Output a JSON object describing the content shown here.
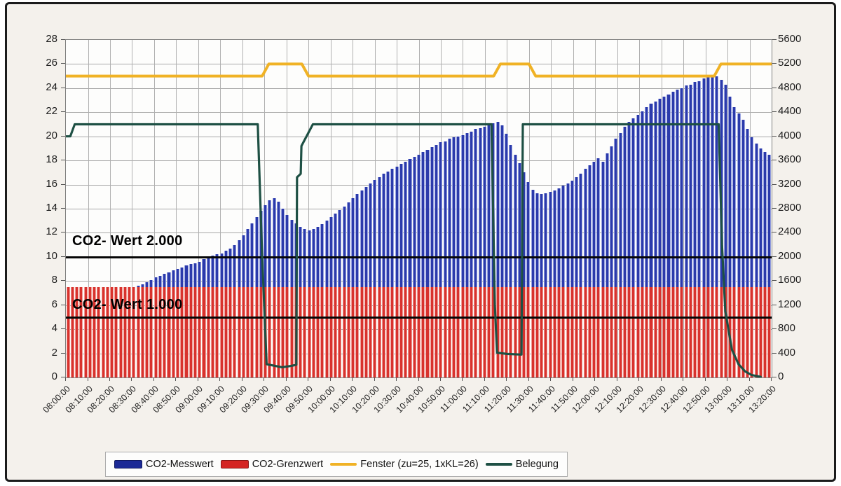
{
  "figure": {
    "background_color": "#f4f1ec",
    "frame_color": "#1b1b1b",
    "plot_background": "#fdfdfc"
  },
  "chart_data": {
    "type": "bar",
    "title": "",
    "xlabel": "",
    "ylabel_left": "",
    "ylabel_right": "",
    "grid": true,
    "left_axis": {
      "min": 0,
      "max": 28,
      "step": 2,
      "ticks": [
        "28",
        "26",
        "24",
        "22",
        "20",
        "18",
        "16",
        "14",
        "12",
        "10",
        "8",
        "6",
        "4",
        "2",
        "0"
      ]
    },
    "right_axis": {
      "min": 0,
      "max": 5600,
      "step": 400,
      "ticks": [
        "5600",
        "5200",
        "4800",
        "4400",
        "4000",
        "3600",
        "3200",
        "2800",
        "2400",
        "2000",
        "1600",
        "1200",
        "800",
        "400",
        "0"
      ]
    },
    "x_labels": [
      "08:00:00",
      "08:10:00",
      "08:20:00",
      "08:30:00",
      "08:40:00",
      "08:50:00",
      "09:00:00",
      "09:10:00",
      "09:20:00",
      "09:30:00",
      "09:40:00",
      "09:50:00",
      "10:00:00",
      "10:10:00",
      "10:20:00",
      "10:30:00",
      "10:40:00",
      "10:50:00",
      "11:00:00",
      "11:10:00",
      "11:20:00",
      "11:30:00",
      "11:40:00",
      "11:50:00",
      "12:00:00",
      "12:10:00",
      "12:20:00",
      "12:30:00",
      "12:40:00",
      "12:50:00",
      "13:00:00",
      "13:10:00",
      "13:20:00"
    ],
    "x_label_interval_minutes": 10,
    "time_span_minutes": 320,
    "bar_interval_minutes": 2,
    "scale_note": "right axis ppm = left axis units x 200",
    "series": [
      {
        "name": "CO2-Messwert",
        "type": "bar",
        "color": "#2b3aab",
        "edge_color": "#99a3e0",
        "values_left_axis_units": [
          6.8,
          6.8,
          6.9,
          6.9,
          7.0,
          7.0,
          7.1,
          7.1,
          7.2,
          7.2,
          7.3,
          7.3,
          7.4,
          7.4,
          7.5,
          7.5,
          7.6,
          7.7,
          7.9,
          8.1,
          8.3,
          8.4,
          8.6,
          8.7,
          8.9,
          9.0,
          9.1,
          9.3,
          9.4,
          9.5,
          9.6,
          9.8,
          9.9,
          10.1,
          10.2,
          10.3,
          10.5,
          10.7,
          11.0,
          11.4,
          11.8,
          12.3,
          12.8,
          13.3,
          13.8,
          14.3,
          14.7,
          14.9,
          14.6,
          14.0,
          13.5,
          13.1,
          12.8,
          12.5,
          12.3,
          12.2,
          12.3,
          12.5,
          12.7,
          13.0,
          13.3,
          13.6,
          13.9,
          14.2,
          14.5,
          14.9,
          15.2,
          15.5,
          15.8,
          16.1,
          16.4,
          16.6,
          16.9,
          17.1,
          17.3,
          17.5,
          17.7,
          17.9,
          18.1,
          18.3,
          18.5,
          18.7,
          18.9,
          19.1,
          19.3,
          19.5,
          19.6,
          19.8,
          19.9,
          20.0,
          20.1,
          20.3,
          20.4,
          20.6,
          20.7,
          20.8,
          21.0,
          21.1,
          21.2,
          20.9,
          20.2,
          19.3,
          18.5,
          17.8,
          17.0,
          16.2,
          15.6,
          15.3,
          15.2,
          15.3,
          15.4,
          15.5,
          15.7,
          15.9,
          16.1,
          16.3,
          16.6,
          16.9,
          17.3,
          17.6,
          17.9,
          18.2,
          17.9,
          18.6,
          19.2,
          19.8,
          20.3,
          20.8,
          21.2,
          21.5,
          21.8,
          22.1,
          22.4,
          22.7,
          22.9,
          23.1,
          23.3,
          23.5,
          23.7,
          23.9,
          24.0,
          24.2,
          24.3,
          24.5,
          24.6,
          24.8,
          24.9,
          25.0,
          25.0,
          24.7,
          24.3,
          23.3,
          22.4,
          21.9,
          21.4,
          20.6,
          19.9,
          19.4,
          19.0,
          18.7,
          18.5
        ]
      },
      {
        "name": "CO2-Grenzwert",
        "type": "bar-constant",
        "color": "#d8322d",
        "edge_color": "#ef9d97",
        "value_left_axis_units": 7.5,
        "value_ppm": 1500
      },
      {
        "name": "Fenster (zu=25, 1xKL=26)",
        "type": "line",
        "color": "#f0b225",
        "points_time_value": [
          [
            0,
            25
          ],
          [
            89,
            25
          ],
          [
            92,
            26
          ],
          [
            107,
            26
          ],
          [
            110,
            25
          ],
          [
            194,
            25
          ],
          [
            197,
            26
          ],
          [
            210,
            26
          ],
          [
            213,
            25
          ],
          [
            294,
            25
          ],
          [
            297,
            26
          ],
          [
            320,
            26
          ]
        ]
      },
      {
        "name": "Belegung",
        "type": "line",
        "color": "#1e5044",
        "points_time_value": [
          [
            0,
            20
          ],
          [
            2,
            20
          ],
          [
            4,
            21
          ],
          [
            87,
            21
          ],
          [
            89,
            10
          ],
          [
            91,
            1.1
          ],
          [
            95,
            0.95
          ],
          [
            98,
            0.85
          ],
          [
            102,
            0.95
          ],
          [
            104.5,
            1.05
          ],
          [
            104.8,
            16.6
          ],
          [
            106.5,
            16.9
          ],
          [
            106.8,
            19.2
          ],
          [
            112,
            21
          ],
          [
            193,
            21
          ],
          [
            194.5,
            6
          ],
          [
            195.5,
            2.05
          ],
          [
            200,
            1.95
          ],
          [
            206.6,
            1.9
          ],
          [
            207.2,
            21
          ],
          [
            296,
            21
          ],
          [
            297.5,
            11
          ],
          [
            299,
            5.5
          ],
          [
            302,
            2.3
          ],
          [
            305,
            1.1
          ],
          [
            308,
            0.5
          ],
          [
            311,
            0.2
          ],
          [
            315,
            0.05
          ]
        ]
      }
    ],
    "ref_lines": [
      {
        "label": "CO2- Wert 2.000",
        "value_left_axis_units": 10,
        "value_ppm": 2000,
        "color": "#060606"
      },
      {
        "label": "CO2- Wert 1.000",
        "value_left_axis_units": 5,
        "value_ppm": 1000,
        "color": "#060606"
      }
    ],
    "legend": {
      "position": "bottom",
      "items": [
        {
          "label": "CO2-Messwert",
          "marker": "bar",
          "color": "#1c2a96"
        },
        {
          "label": "CO2-Grenzwert",
          "marker": "bar",
          "color": "#d42422"
        },
        {
          "label": "Fenster (zu=25, 1xKL=26)",
          "marker": "line",
          "color": "#f0b225"
        },
        {
          "label": "Belegung",
          "marker": "line",
          "color": "#1e5044"
        }
      ]
    }
  }
}
